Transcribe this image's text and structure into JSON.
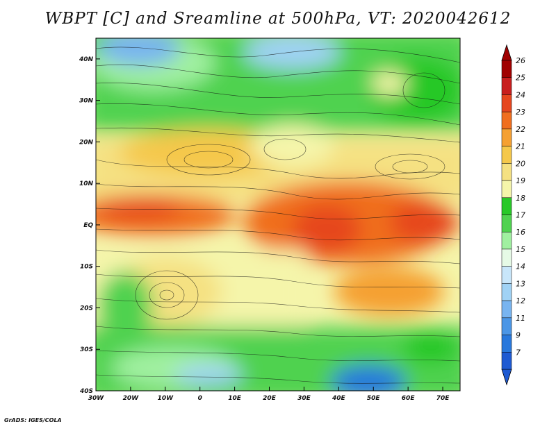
{
  "title": "WBPT [C] and Sreamline at 500hPa, VT: 2020042612",
  "credit": "GrADS: IGES/COLA",
  "map": {
    "lon_range": [
      -30,
      75
    ],
    "lat_range": [
      -40,
      45
    ],
    "lon_ticks": [
      {
        "value": -30,
        "label": "30W"
      },
      {
        "value": -20,
        "label": "20W"
      },
      {
        "value": -10,
        "label": "10W"
      },
      {
        "value": 0,
        "label": "0"
      },
      {
        "value": 10,
        "label": "10E"
      },
      {
        "value": 20,
        "label": "20E"
      },
      {
        "value": 30,
        "label": "30E"
      },
      {
        "value": 40,
        "label": "40E"
      },
      {
        "value": 50,
        "label": "50E"
      },
      {
        "value": 60,
        "label": "60E"
      },
      {
        "value": 70,
        "label": "70E"
      }
    ],
    "lat_ticks": [
      {
        "value": 40,
        "label": "40N"
      },
      {
        "value": 30,
        "label": "30N"
      },
      {
        "value": 20,
        "label": "20N"
      },
      {
        "value": 10,
        "label": "10N"
      },
      {
        "value": 0,
        "label": "EQ"
      },
      {
        "value": -10,
        "label": "10S"
      },
      {
        "value": -20,
        "label": "20S"
      },
      {
        "value": -30,
        "label": "30S"
      },
      {
        "value": -40,
        "label": "40S"
      }
    ]
  },
  "colorbar": {
    "levels": [
      "26",
      "25",
      "24",
      "23",
      "22",
      "21",
      "20",
      "19",
      "18",
      "17",
      "16",
      "15",
      "14",
      "13",
      "12",
      "11",
      "9",
      "7"
    ],
    "colors": [
      "#a00000",
      "#c81e1e",
      "#e6461e",
      "#f06e1e",
      "#f5a032",
      "#f5c84b",
      "#f5e182",
      "#f5f5aa",
      "#28c828",
      "#50d250",
      "#a0f0a0",
      "#e6fae6",
      "#c8e6fa",
      "#a0d2f5",
      "#78b4f0",
      "#4b96e6",
      "#2878dc",
      "#1e5ad2"
    ]
  }
}
